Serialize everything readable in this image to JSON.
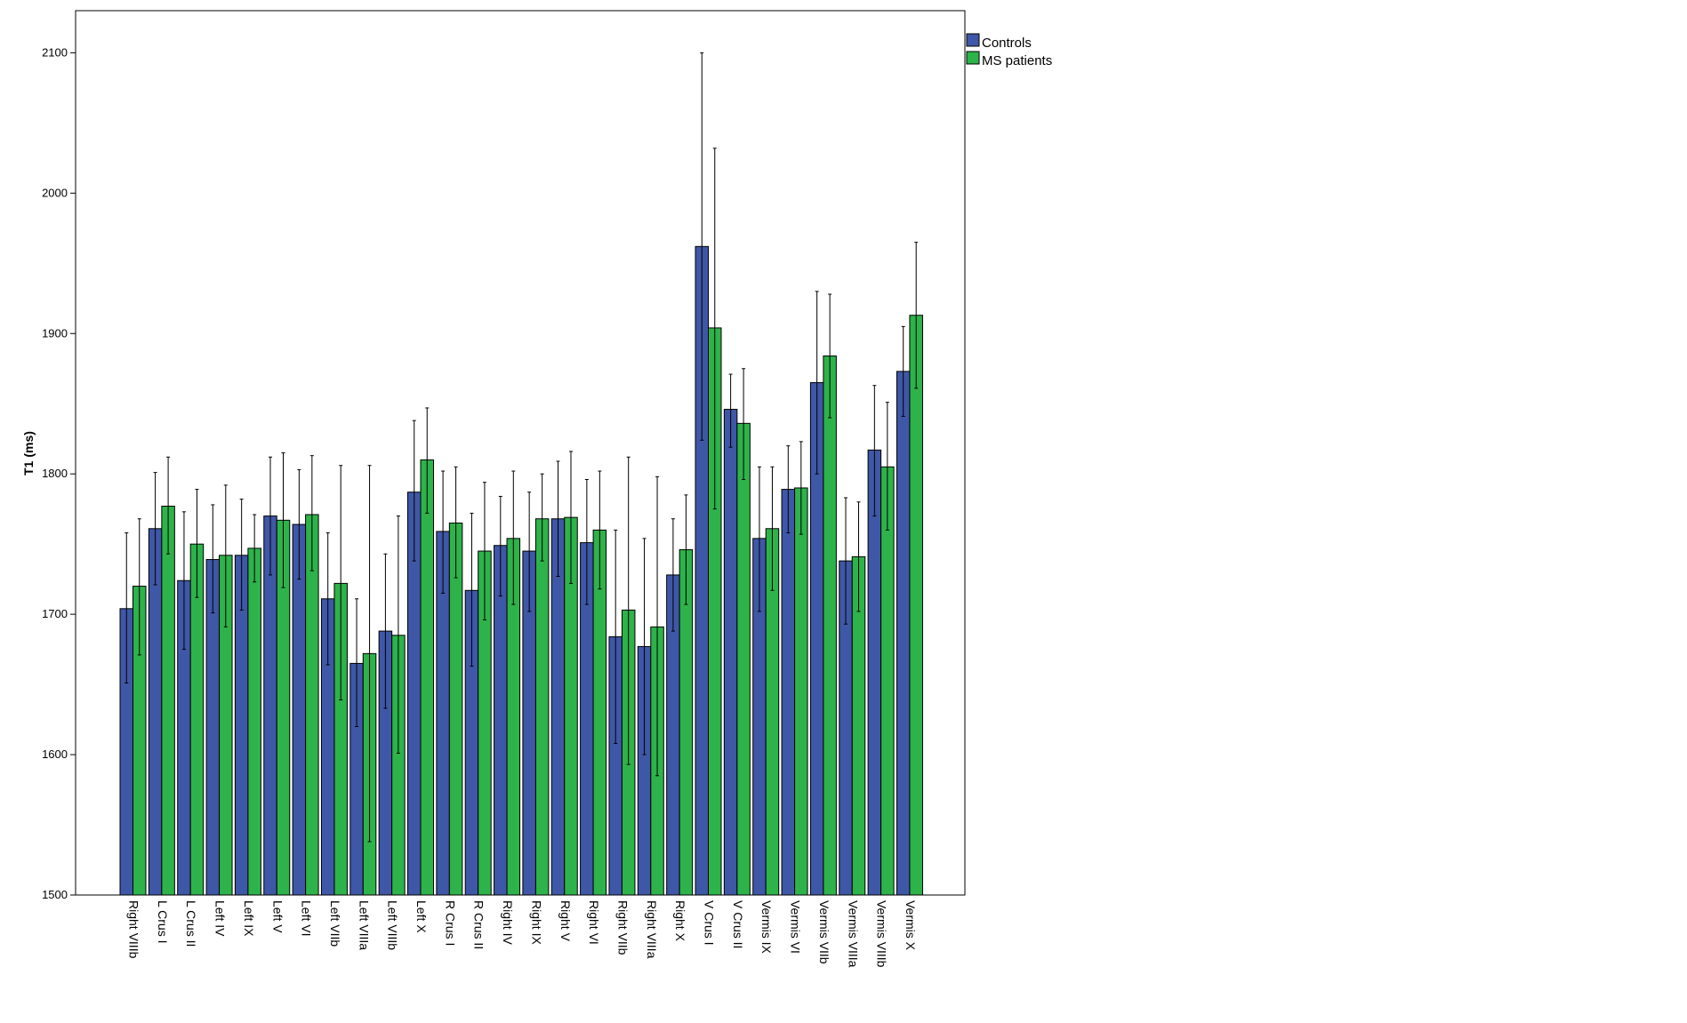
{
  "chart_data": {
    "type": "bar",
    "ylabel": "T1 (ms)",
    "xlabel": "",
    "ylim": [
      1500,
      2130
    ],
    "yticks": [
      1500,
      1600,
      1700,
      1800,
      1900,
      2000,
      2100
    ],
    "grid": false,
    "legend_position": "top-right outside plot",
    "categories": [
      "Right VIIIb",
      "L Crus I",
      "L Crus II",
      "Left IV",
      "Left IX",
      "Left V",
      "Left VI",
      "Left VIIb",
      "Left VIIIa",
      "Left VIIIb",
      "Left X",
      "R Crus I",
      "R Crus II",
      "Right IV",
      "Right IX",
      "Right V",
      "Right VI",
      "Right VIIb",
      "Right VIIIa",
      "Right X",
      "V Crus I",
      "V Crus II",
      "Vermis IX",
      "Vermis VI",
      "Vermis VIIb",
      "Vermis VIIIa",
      "Vermis VIIIb",
      "Vermis X"
    ],
    "series": [
      {
        "name": "Controls",
        "color": "#3F57A7",
        "values": [
          1704,
          1761,
          1724,
          1739,
          1742,
          1770,
          1764,
          1711,
          1665,
          1688,
          1787,
          1759,
          1717,
          1749,
          1745,
          1768,
          1751,
          1684,
          1677,
          1728,
          1962,
          1846,
          1754,
          1789,
          1865,
          1738,
          1817,
          1873
        ],
        "err_low": [
          1651,
          1721,
          1675,
          1701,
          1703,
          1728,
          1725,
          1664,
          1620,
          1633,
          1738,
          1715,
          1663,
          1713,
          1702,
          1727,
          1707,
          1608,
          1600,
          1688,
          1824,
          1819,
          1702,
          1758,
          1800,
          1693,
          1770,
          1841
        ],
        "err_high": [
          1758,
          1801,
          1773,
          1778,
          1782,
          1812,
          1803,
          1758,
          1711,
          1743,
          1838,
          1802,
          1772,
          1784,
          1787,
          1809,
          1796,
          1760,
          1754,
          1768,
          2100,
          1871,
          1805,
          1820,
          1930,
          1783,
          1863,
          1905
        ]
      },
      {
        "name": "MS patients",
        "color": "#2DB34A",
        "values": [
          1720,
          1777,
          1750,
          1742,
          1747,
          1767,
          1771,
          1722,
          1672,
          1685,
          1810,
          1765,
          1745,
          1754,
          1768,
          1769,
          1760,
          1703,
          1691,
          1746,
          1904,
          1836,
          1761,
          1790,
          1884,
          1741,
          1805,
          1913
        ],
        "err_low": [
          1671,
          1743,
          1712,
          1691,
          1723,
          1719,
          1731,
          1639,
          1538,
          1601,
          1772,
          1726,
          1696,
          1707,
          1738,
          1722,
          1718,
          1593,
          1585,
          1707,
          1775,
          1796,
          1717,
          1757,
          1840,
          1702,
          1760,
          1861
        ],
        "err_high": [
          1768,
          1812,
          1789,
          1792,
          1771,
          1815,
          1813,
          1806,
          1806,
          1770,
          1847,
          1805,
          1794,
          1802,
          1800,
          1816,
          1802,
          1812,
          1798,
          1785,
          2032,
          1875,
          1805,
          1823,
          1928,
          1780,
          1851,
          1965
        ]
      }
    ]
  }
}
